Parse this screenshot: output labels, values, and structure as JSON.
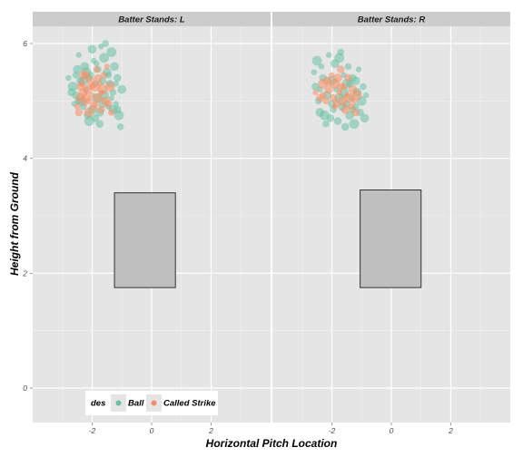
{
  "chart_data": {
    "type": "scatter",
    "xlabel": "Horizontal Pitch Location",
    "ylabel": "Height from Ground",
    "xlim": [
      -4.0,
      4.0
    ],
    "ylim": [
      -0.6,
      6.3
    ],
    "x_ticks": [
      -2,
      0,
      2
    ],
    "y_ticks": [
      0,
      2,
      4,
      6
    ],
    "legend": {
      "title": "des",
      "position": "bottom-left",
      "entries": [
        {
          "label": "Ball",
          "color": "#66c2a5"
        },
        {
          "label": "Called Strike",
          "color": "#fc8d62"
        }
      ]
    },
    "colors": {
      "panel_bg": "#e5e5e5",
      "strip_bg": "#cccccc",
      "grid": "#ffffff",
      "zone_fill": "#bfbfbf",
      "zone_stroke": "#333333"
    },
    "facets": [
      {
        "strip_label": "Batter Stands: L",
        "strike_zone": {
          "x": [
            -1.25,
            0.8
          ],
          "y": [
            1.75,
            3.4
          ]
        },
        "series": [
          {
            "name": "Ball",
            "points": [
              [
                -2.8,
                5.4
              ],
              [
                -2.7,
                5.15
              ],
              [
                -2.65,
                5.25
              ],
              [
                -2.55,
                5.45
              ],
              [
                -2.5,
                5.55
              ],
              [
                -2.45,
                5.8
              ],
              [
                -2.4,
                5.35
              ],
              [
                -2.35,
                5.0
              ],
              [
                -2.3,
                4.9
              ],
              [
                -2.25,
                5.6
              ],
              [
                -2.2,
                5.2
              ],
              [
                -2.15,
                4.75
              ],
              [
                -2.1,
                4.65
              ],
              [
                -2.05,
                5.45
              ],
              [
                -2.0,
                5.9
              ],
              [
                -1.95,
                5.7
              ],
              [
                -1.9,
                4.7
              ],
              [
                -1.85,
                5.05
              ],
              [
                -1.8,
                5.55
              ],
              [
                -1.75,
                4.8
              ],
              [
                -1.7,
                5.95
              ],
              [
                -1.65,
                5.35
              ],
              [
                -1.6,
                5.75
              ],
              [
                -1.55,
                6.0
              ],
              [
                -1.5,
                5.5
              ],
              [
                -1.45,
                4.9
              ],
              [
                -1.4,
                5.3
              ],
              [
                -1.35,
                5.85
              ],
              [
                -1.3,
                5.15
              ],
              [
                -1.25,
                5.6
              ],
              [
                -1.2,
                4.95
              ],
              [
                -1.15,
                5.4
              ],
              [
                -1.1,
                4.75
              ],
              [
                -1.05,
                4.55
              ],
              [
                -1.0,
                5.2
              ],
              [
                -2.6,
                4.95
              ],
              [
                -2.45,
                5.0
              ],
              [
                -2.3,
                5.35
              ],
              [
                -2.1,
                5.4
              ],
              [
                -2.0,
                4.85
              ],
              [
                -1.85,
                5.65
              ],
              [
                -1.75,
                4.6
              ],
              [
                -1.6,
                5.1
              ],
              [
                -1.45,
                5.45
              ],
              [
                -1.3,
                4.85
              ],
              [
                -1.2,
                5.3
              ],
              [
                -2.55,
                5.1
              ],
              [
                -2.2,
                5.5
              ],
              [
                -1.9,
                5.3
              ],
              [
                -1.65,
                4.95
              ],
              [
                -1.35,
                5.05
              ],
              [
                -1.15,
                4.85
              ]
            ]
          },
          {
            "name": "Called Strike",
            "points": [
              [
                -2.5,
                4.9
              ],
              [
                -2.45,
                4.8
              ],
              [
                -2.4,
                5.05
              ],
              [
                -2.35,
                5.3
              ],
              [
                -2.3,
                5.15
              ],
              [
                -2.25,
                4.95
              ],
              [
                -2.2,
                5.45
              ],
              [
                -2.15,
                5.2
              ],
              [
                -2.1,
                5.0
              ],
              [
                -2.05,
                5.35
              ],
              [
                -2.0,
                5.1
              ],
              [
                -1.95,
                4.9
              ],
              [
                -1.9,
                5.25
              ],
              [
                -1.85,
                5.55
              ],
              [
                -1.8,
                5.05
              ],
              [
                -1.75,
                5.3
              ],
              [
                -1.7,
                4.85
              ],
              [
                -1.65,
                5.2
              ],
              [
                -1.6,
                5.45
              ],
              [
                -1.55,
                5.0
              ],
              [
                -1.5,
                5.6
              ],
              [
                -1.45,
                4.95
              ],
              [
                -1.4,
                5.25
              ],
              [
                -1.35,
                4.8
              ],
              [
                -2.2,
                5.05
              ],
              [
                -2.0,
                5.25
              ],
              [
                -1.8,
                5.4
              ],
              [
                -2.1,
                4.8
              ],
              [
                -1.9,
                4.95
              ],
              [
                -2.3,
                5.45
              ],
              [
                -1.7,
                5.15
              ],
              [
                -2.4,
                5.25
              ]
            ]
          }
        ]
      },
      {
        "strip_label": "Batter Stands: R",
        "strike_zone": {
          "x": [
            -1.05,
            1.0
          ],
          "y": [
            1.75,
            3.45
          ]
        },
        "series": [
          {
            "name": "Ball",
            "points": [
              [
                -2.6,
                5.5
              ],
              [
                -2.55,
                5.25
              ],
              [
                -2.5,
                5.7
              ],
              [
                -2.45,
                5.0
              ],
              [
                -2.4,
                4.8
              ],
              [
                -2.35,
                5.6
              ],
              [
                -2.3,
                5.4
              ],
              [
                -2.25,
                4.75
              ],
              [
                -2.2,
                4.6
              ],
              [
                -2.15,
                5.1
              ],
              [
                -2.1,
                5.8
              ],
              [
                -2.05,
                4.7
              ],
              [
                -2.0,
                5.35
              ],
              [
                -1.95,
                4.85
              ],
              [
                -1.9,
                5.65
              ],
              [
                -1.85,
                5.2
              ],
              [
                -1.8,
                4.65
              ],
              [
                -1.75,
                5.75
              ],
              [
                -1.7,
                5.85
              ],
              [
                -1.65,
                4.9
              ],
              [
                -1.6,
                5.45
              ],
              [
                -1.55,
                4.55
              ],
              [
                -1.5,
                5.3
              ],
              [
                -1.45,
                5.6
              ],
              [
                -1.4,
                4.75
              ],
              [
                -1.35,
                5.05
              ],
              [
                -1.3,
                5.4
              ],
              [
                -1.25,
                4.6
              ],
              [
                -1.2,
                4.9
              ],
              [
                -1.15,
                5.15
              ],
              [
                -1.1,
                5.55
              ],
              [
                -1.05,
                4.8
              ],
              [
                -1.0,
                5.0
              ],
              [
                -0.95,
                5.25
              ],
              [
                -0.9,
                4.7
              ],
              [
                -0.85,
                5.1
              ],
              [
                -1.5,
                4.95
              ],
              [
                -1.6,
                5.15
              ],
              [
                -1.3,
                4.85
              ],
              [
                -1.2,
                5.35
              ],
              [
                -2.4,
                5.2
              ],
              [
                -2.0,
                4.95
              ],
              [
                -1.75,
                5.05
              ],
              [
                -1.4,
                5.3
              ]
            ]
          },
          {
            "name": "Called Strike",
            "points": [
              [
                -2.55,
                5.15
              ],
              [
                -2.4,
                5.05
              ],
              [
                -2.3,
                5.3
              ],
              [
                -2.2,
                5.0
              ],
              [
                -2.1,
                5.2
              ],
              [
                -2.0,
                5.45
              ],
              [
                -1.95,
                5.05
              ],
              [
                -1.9,
                5.3
              ],
              [
                -1.85,
                4.95
              ],
              [
                -1.8,
                5.4
              ],
              [
                -1.75,
                5.15
              ],
              [
                -1.7,
                5.55
              ],
              [
                -1.65,
                5.0
              ],
              [
                -1.6,
                5.25
              ],
              [
                -1.55,
                4.85
              ],
              [
                -1.5,
                5.1
              ],
              [
                -1.45,
                5.4
              ],
              [
                -1.4,
                5.05
              ],
              [
                -1.35,
                4.9
              ],
              [
                -1.3,
                5.2
              ],
              [
                -1.25,
                5.0
              ],
              [
                -1.2,
                4.8
              ],
              [
                -1.15,
                5.1
              ],
              [
                -2.3,
                5.1
              ],
              [
                -2.15,
                5.35
              ],
              [
                -1.9,
                4.9
              ],
              [
                -1.7,
                5.25
              ]
            ]
          }
        ]
      }
    ]
  }
}
